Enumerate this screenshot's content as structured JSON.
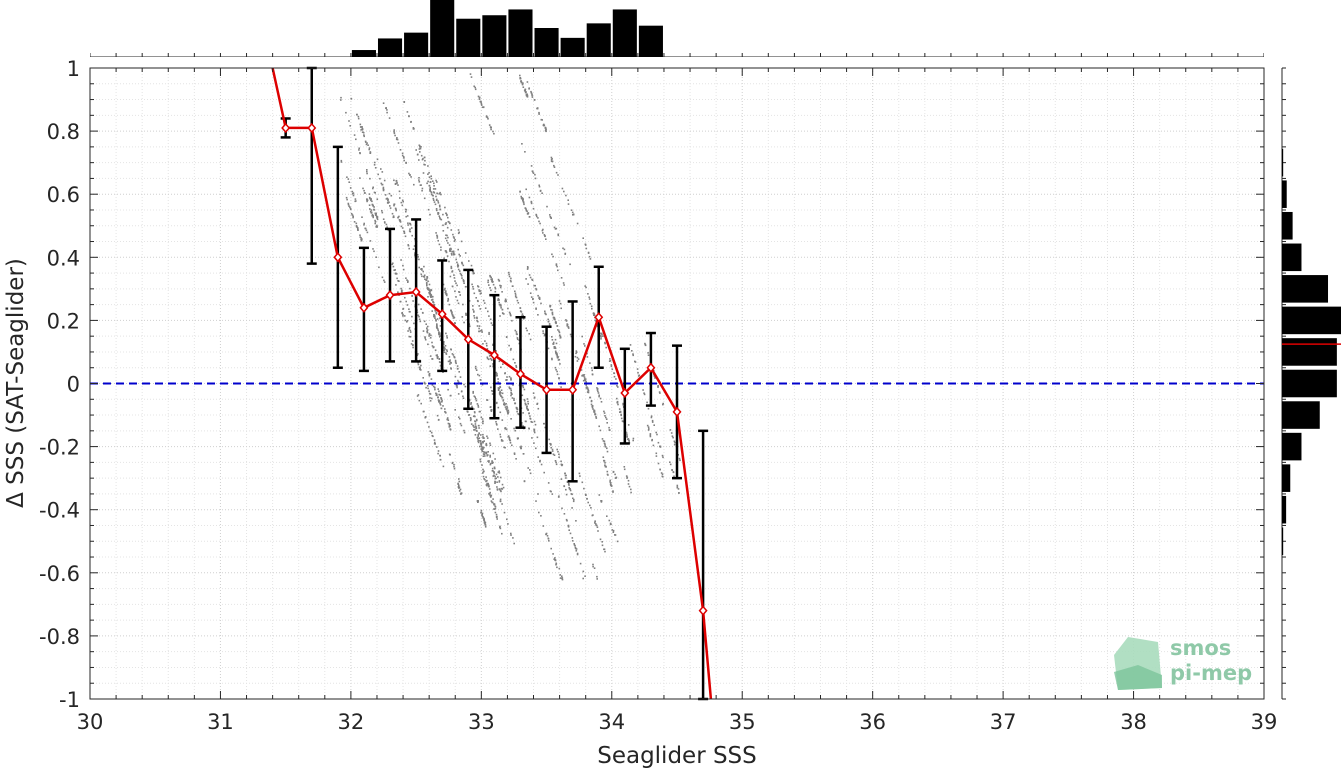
{
  "chart_data": {
    "type": "scatter",
    "xlabel": "Seaglider SSS",
    "ylabel": "Δ SSS (SAT-Seaglider)",
    "xlim": [
      30,
      39
    ],
    "ylim": [
      -1,
      1
    ],
    "x_ticks": [
      "30",
      "31",
      "32",
      "33",
      "34",
      "35",
      "36",
      "37",
      "38",
      "39"
    ],
    "y_ticks": [
      "-1",
      "-0.8",
      "-0.6",
      "-0.4",
      "-0.2",
      "0",
      "0.2",
      "0.4",
      "0.6",
      "0.8",
      "1"
    ],
    "grid": true,
    "reference_line": {
      "y": 0,
      "style": "dashed",
      "color": "#0000cc"
    },
    "scatter_color": "#808080",
    "binned_color": "#dd0000",
    "errorbar_color": "#000000",
    "binned_mean": {
      "x": [
        31.4,
        31.5,
        31.7,
        31.9,
        32.1,
        32.3,
        32.5,
        32.7,
        32.9,
        33.1,
        33.3,
        33.5,
        33.7,
        33.9,
        34.1,
        34.3,
        34.5,
        34.7,
        34.76
      ],
      "y": [
        1.0,
        0.81,
        0.81,
        0.4,
        0.24,
        0.28,
        0.29,
        0.22,
        0.14,
        0.09,
        0.03,
        -0.02,
        -0.02,
        0.21,
        -0.03,
        0.05,
        -0.09,
        -0.72,
        -1.0
      ]
    },
    "error_bars": [
      {
        "x": 31.5,
        "low": 0.78,
        "high": 0.84
      },
      {
        "x": 31.7,
        "low": 0.38,
        "high": 1.0
      },
      {
        "x": 31.9,
        "low": 0.05,
        "high": 0.75
      },
      {
        "x": 32.1,
        "low": 0.04,
        "high": 0.43
      },
      {
        "x": 32.3,
        "low": 0.07,
        "high": 0.49
      },
      {
        "x": 32.5,
        "low": 0.07,
        "high": 0.52
      },
      {
        "x": 32.7,
        "low": 0.04,
        "high": 0.39
      },
      {
        "x": 32.9,
        "low": -0.08,
        "high": 0.36
      },
      {
        "x": 33.1,
        "low": -0.11,
        "high": 0.28
      },
      {
        "x": 33.3,
        "low": -0.14,
        "high": 0.21
      },
      {
        "x": 33.5,
        "low": -0.22,
        "high": 0.18
      },
      {
        "x": 33.7,
        "low": -0.31,
        "high": 0.26
      },
      {
        "x": 33.9,
        "low": 0.05,
        "high": 0.37
      },
      {
        "x": 34.1,
        "low": -0.19,
        "high": 0.11
      },
      {
        "x": 34.3,
        "low": -0.07,
        "high": 0.16
      },
      {
        "x": 34.5,
        "low": -0.3,
        "high": 0.12
      },
      {
        "x": 34.7,
        "low": -1.0,
        "high": -0.15
      }
    ],
    "x_histogram": {
      "bins": [
        32.1,
        32.3,
        32.5,
        32.7,
        32.9,
        33.1,
        33.3,
        33.5,
        33.7,
        33.9,
        34.1,
        34.3
      ],
      "relative_counts": [
        0.12,
        0.32,
        0.42,
        1.0,
        0.66,
        0.72,
        0.82,
        0.5,
        0.33,
        0.58,
        0.82,
        0.54
      ]
    },
    "y_histogram": {
      "bins": [
        0.7,
        0.6,
        0.5,
        0.4,
        0.3,
        0.2,
        0.1,
        0.0,
        -0.1,
        -0.2,
        -0.3,
        -0.4,
        -0.5
      ],
      "relative_counts": [
        0.02,
        0.08,
        0.18,
        0.33,
        0.78,
        1.0,
        0.93,
        0.93,
        0.64,
        0.33,
        0.14,
        0.07,
        0.02
      ],
      "mean": 0.125
    },
    "scatter_clusters": [
      {
        "x0": 31.9,
        "x1": 33.4,
        "dydx": -1.15,
        "y_top": 0.92,
        "y_bottom": -0.35,
        "n": 1100
      },
      {
        "x0": 32.3,
        "x1": 33.3,
        "dydx": -1.3,
        "y_top": 0.65,
        "y_bottom": -0.72,
        "n": 600
      },
      {
        "x0": 33.0,
        "x1": 34.0,
        "dydx": -1.25,
        "y_top": 0.35,
        "y_bottom": -0.62,
        "n": 650
      },
      {
        "x0": 33.6,
        "x1": 34.7,
        "dydx": -1.4,
        "y_top": 0.32,
        "y_bottom": -0.35,
        "n": 420
      },
      {
        "x0": 32.9,
        "x1": 34.3,
        "dydx": -1.05,
        "y_top": 0.98,
        "y_bottom": -0.5,
        "n": 260
      }
    ]
  },
  "logo": {
    "line1": "smos",
    "line2": "pi-mep"
  }
}
